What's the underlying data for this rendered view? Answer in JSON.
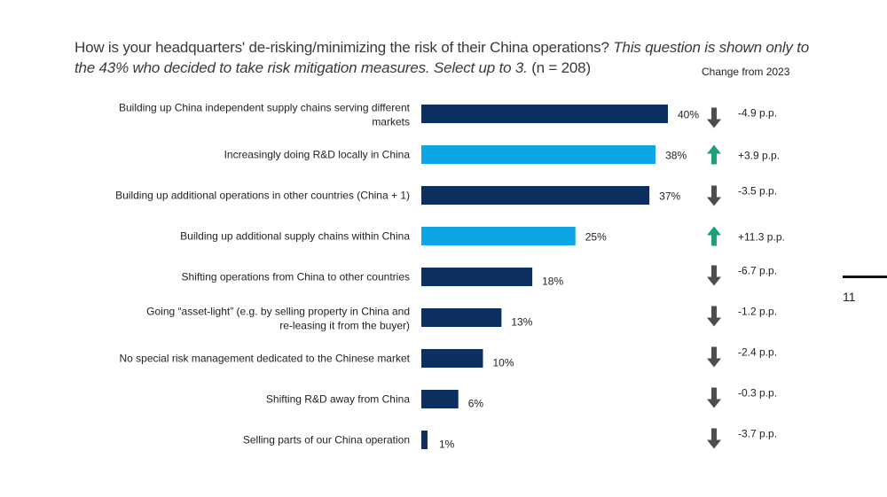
{
  "title": {
    "main": "How is your headquarters' de-risking/minimizing the risk of their China operations?",
    "italic": "This question is shown only to the 43% who decided to take risk mitigation measures. Select up to 3.",
    "n": "(n = 208)"
  },
  "change_header": "Change from 2023",
  "page_number": "11",
  "colors": {
    "dark_bar": "#0b2f5e",
    "light_bar": "#0ea5e4",
    "arrow_up": "#1e9e7a",
    "arrow_down": "#4d4d4d"
  },
  "chart_data": {
    "type": "bar",
    "orientation": "horizontal",
    "xlim": [
      0,
      40
    ],
    "categories": [
      "Building up China independent supply chains serving different markets",
      "Increasingly doing R&D locally in China",
      "Building up additional operations in other countries (China + 1)",
      "Building up additional supply chains within China",
      "Shifting operations from China to other countries",
      "Going “asset-light” (e.g. by selling property in China and re-leasing it from the buyer)",
      "No special risk management dedicated to the Chinese market",
      "Shifting R&D away from China",
      "Selling parts of our China operation"
    ],
    "values": [
      40,
      38,
      37,
      25,
      18,
      13,
      10,
      6,
      1
    ],
    "value_labels": [
      "40%",
      "38%",
      "37%",
      "25%",
      "18%",
      "13%",
      "10%",
      "6%",
      "1%"
    ],
    "highlight": [
      false,
      true,
      false,
      true,
      false,
      false,
      false,
      false,
      false
    ],
    "changes": [
      "-4.9 p.p.",
      "+3.9 p.p.",
      "-3.5 p.p.",
      "+11.3 p.p.",
      "-6.7 p.p.",
      "-1.2 p.p.",
      "-2.4 p.p.",
      "-0.3 p.p.",
      "-3.7 p.p."
    ],
    "change_direction": [
      "down",
      "up",
      "down",
      "up",
      "down",
      "down",
      "down",
      "down",
      "down"
    ]
  }
}
